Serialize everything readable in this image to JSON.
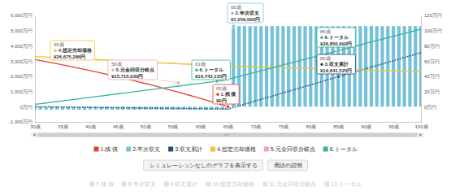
{
  "chart_data": {
    "type": "combo",
    "x": [
      30,
      31,
      32,
      33,
      34,
      35,
      36,
      37,
      38,
      39,
      40,
      41,
      42,
      43,
      44,
      45,
      46,
      47,
      48,
      49,
      50,
      51,
      52,
      53,
      54,
      55,
      56,
      57,
      58,
      59,
      60,
      61,
      62,
      63,
      64,
      65,
      66,
      67,
      68,
      69,
      70,
      71,
      72,
      73,
      74,
      75,
      76,
      77,
      78,
      79,
      80,
      81,
      82,
      83,
      84,
      85,
      86,
      87,
      88,
      89,
      90,
      91,
      92,
      93,
      94,
      95,
      96,
      97,
      98,
      99,
      100
    ],
    "xlim": [
      30,
      100
    ],
    "xticks": [
      {
        "value": 30,
        "label": "30歳"
      },
      {
        "value": 35,
        "label": "35歳"
      },
      {
        "value": 40,
        "label": "40歳"
      },
      {
        "value": 45,
        "label": "45歳"
      },
      {
        "value": 50,
        "label": "50歳"
      },
      {
        "value": 55,
        "label": "55歳"
      },
      {
        "value": 60,
        "label": "60歳"
      },
      {
        "value": 65,
        "label": "65歳"
      },
      {
        "value": 70,
        "label": "70歳"
      },
      {
        "value": 75,
        "label": "75歳"
      },
      {
        "value": 80,
        "label": "80歳"
      },
      {
        "value": 85,
        "label": "85歳"
      },
      {
        "value": 90,
        "label": "90歳"
      },
      {
        "value": 95,
        "label": "95歳"
      },
      {
        "value": 100,
        "label": "100歳"
      }
    ],
    "ylim": [
      -1000,
      6000
    ],
    "yticks": [
      {
        "value": -1000,
        "label": "-1,000万円"
      },
      {
        "value": 0,
        "label": "0万円"
      },
      {
        "value": 1000,
        "label": "1,000万円"
      },
      {
        "value": 2000,
        "label": "2,000万円"
      },
      {
        "value": 3000,
        "label": "3,000万円"
      },
      {
        "value": 4000,
        "label": "4,000万円"
      },
      {
        "value": 5000,
        "label": "5,000万円"
      },
      {
        "value": 6000,
        "label": "6,000万円"
      }
    ],
    "y2lim": [
      -20,
      120
    ],
    "y2ticks": [
      {
        "value": 0,
        "label": "0万円"
      },
      {
        "value": 20,
        "label": "20万円"
      },
      {
        "value": 40,
        "label": "40万円"
      },
      {
        "value": 60,
        "label": "60万円"
      },
      {
        "value": 80,
        "label": "80万円"
      },
      {
        "value": 100,
        "label": "100万円"
      },
      {
        "value": 120,
        "label": "120万円"
      }
    ],
    "grid": false,
    "legend": "bottom",
    "series": [
      {
        "name": "1.残 債",
        "type": "line",
        "color": "#e5412d",
        "values": [
          3100,
          3032,
          2963,
          2893,
          2822,
          2750,
          2676,
          2601,
          2525,
          2449,
          2372,
          2293,
          2213,
          2131,
          2049,
          1965,
          1880,
          1793,
          1705,
          1616,
          1525,
          1433,
          1339,
          1244,
          1148,
          1054,
          953,
          852,
          750,
          648,
          546,
          441,
          334,
          225,
          114,
          0,
          null,
          null,
          null,
          null,
          null,
          null,
          null,
          null,
          null,
          null,
          null,
          null,
          null,
          null,
          null,
          null,
          null,
          null,
          null,
          null,
          null,
          null,
          null,
          null,
          null,
          null,
          null,
          null,
          null,
          null,
          null,
          null,
          null,
          null,
          null
        ]
      },
      {
        "name": "2.年次収支",
        "type": "bar",
        "axis": "y2",
        "color": "#76c1d9",
        "values": [
          -4,
          -4,
          -4,
          -4,
          -4,
          -4,
          -4,
          -4,
          -4,
          -4,
          -4,
          -4,
          -4,
          -4,
          -4,
          -4,
          -4,
          -4,
          -4,
          -4,
          -4,
          -4,
          -4,
          -4,
          -4,
          -4,
          -4,
          -4,
          -4,
          -4,
          -4,
          -4,
          -4,
          -4,
          -4,
          -4,
          105.9,
          105.9,
          105.9,
          105.9,
          105.9,
          105.9,
          105.9,
          105.9,
          105.9,
          105.9,
          105.9,
          105.9,
          105.9,
          105.9,
          105.9,
          105.9,
          105.9,
          105.9,
          105.9,
          105.9,
          105.9,
          105.9,
          105.9,
          105.9,
          105.9,
          105.9,
          105.9,
          105.9,
          105.9,
          105.9,
          105.9,
          105.9,
          105.9,
          105.9,
          105.9
        ]
      },
      {
        "name": "3.収支累計",
        "type": "line",
        "line_style": "dotted",
        "color": "#1d4f7c",
        "values": [
          -4,
          -9,
          -13,
          -17,
          -21,
          -26,
          -30,
          -34,
          -38,
          -43,
          -47,
          -51,
          -56,
          -60,
          -64,
          -68,
          -73,
          -77,
          -81,
          -85,
          -90,
          -94,
          -98,
          -103,
          -107,
          -111,
          -115,
          -120,
          -124,
          -128,
          -132,
          -137,
          -141,
          -145,
          -150,
          -153.85,
          -47.95,
          57.95,
          163.85,
          269.75,
          375.65,
          481.55,
          587.45,
          693.35,
          799.25,
          905.15,
          1011.05,
          1116.95,
          1222.85,
          1328.75,
          1434.65,
          1540.55,
          1646.45,
          1752.35,
          1858.25,
          1964.15,
          2070.05,
          2175.95,
          2281.85,
          2387.75,
          2493.65,
          2599.55,
          2705.45,
          2811.35,
          2917.25,
          3023.15,
          3129.05,
          3234.95,
          3340.85,
          3446.75,
          3552.65
        ]
      },
      {
        "name": "4.想定売却価格",
        "type": "line",
        "color": "#f2c12e",
        "values": [
          3300,
          3282,
          3264,
          3246,
          3228,
          3210,
          3192,
          3174,
          3155,
          3137,
          3119,
          3101,
          3083,
          3065,
          3047,
          3029,
          3011,
          2993,
          2975,
          2957,
          2939,
          2921,
          2902,
          2884,
          2866,
          2848,
          2830,
          2812,
          2794,
          2776,
          2758,
          2740,
          2722,
          2704,
          2686,
          2667.53,
          2657,
          2647,
          2636,
          2626,
          2615,
          2605,
          2594,
          2584,
          2573,
          2562,
          2552,
          2541,
          2531,
          2520,
          2510,
          2499,
          2489,
          2478,
          2468,
          2457,
          2447,
          2436,
          2426,
          2415,
          2405,
          2394,
          2384,
          2373,
          2363,
          2352,
          2342,
          2331,
          2321,
          2310,
          2300
        ]
      },
      {
        "name": "5.元金回収分岐点",
        "type": "scatter",
        "marker": "circle",
        "color": "#f2a5b5",
        "values": [
          null,
          null,
          null,
          null,
          null,
          null,
          null,
          null,
          null,
          null,
          null,
          null,
          null,
          null,
          null,
          null,
          null,
          null,
          null,
          null,
          null,
          null,
          null,
          null,
          null,
          null,
          1571.503,
          null,
          null,
          null,
          null,
          null,
          null,
          null,
          null,
          null,
          null,
          null,
          null,
          null,
          null,
          null,
          null,
          null,
          null,
          null,
          null,
          null,
          null,
          null,
          null,
          null,
          null,
          null,
          null,
          null,
          null,
          null,
          null,
          null,
          null,
          null,
          null,
          null,
          null,
          null,
          null,
          null,
          null,
          null,
          null
        ]
      },
      {
        "name": "6.トータル",
        "type": "line",
        "color": "#34b3a0",
        "values": [
          150,
          196,
          242,
          289,
          335,
          381,
          427,
          473,
          520,
          566,
          612,
          658,
          704,
          751,
          797,
          843,
          889,
          935,
          982,
          1028,
          1074,
          1120,
          1166,
          1213,
          1259,
          1305,
          1351,
          1397,
          1444,
          1490,
          1536,
          1582,
          1628,
          1674.32,
          1720,
          1797,
          1891,
          1986,
          2080,
          2174,
          2269,
          2363,
          2458,
          2552,
          2647,
          2741,
          2835,
          2930,
          3024,
          3119,
          3213,
          3307,
          3402,
          3496,
          3591,
          3685.07,
          3779,
          3874,
          3968,
          4063,
          4157,
          4251,
          4346,
          4440,
          4535,
          4629,
          4723,
          4818,
          4912,
          5007,
          5101
        ]
      }
    ],
    "annotations": [
      {
        "x": 65,
        "x_label": "65歳",
        "name": "1.残 債",
        "value": 0,
        "label": "¥0円"
      },
      {
        "x": 66,
        "x_label": "66歳",
        "name": "2.年次収支",
        "value": 105.9,
        "label": "¥1,059,000円"
      },
      {
        "x": 85,
        "x_label": "85歳",
        "name": "3.収支累計",
        "value": 1964.1525,
        "label": "¥19,641,525円"
      },
      {
        "x": 65,
        "x_label": "65歳",
        "name": "4.想定売却価格",
        "value": 2667.5286,
        "label": "¥26,675,286円"
      },
      {
        "x": 56,
        "x_label": "56歳",
        "name": "5.元金回収分岐点",
        "value": 1571.503,
        "label": "¥15,715,030円"
      },
      {
        "x": 63,
        "x_label": "63歳",
        "name": "6.トータル",
        "value": 1674.3155,
        "label": "¥16,743,155円"
      },
      {
        "x": 85,
        "x_label": "85歳",
        "name": "6.トータル",
        "value": 3685.0692,
        "label": "¥36,850,692円"
      }
    ],
    "buttons": [
      "シミュレーションなしのグラフを表示する",
      "用語の説明"
    ],
    "secondary_legend": [
      "7.残 債",
      "8.年次収支",
      "9.収支累計",
      "10.想定売却価格",
      "11.元金回収分岐点",
      "12.トータル"
    ]
  }
}
